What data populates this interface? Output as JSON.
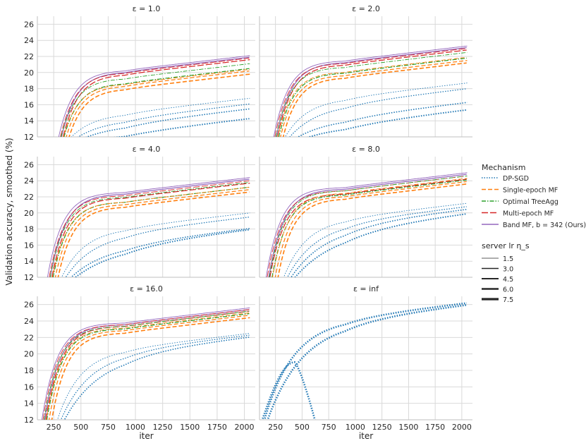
{
  "chart_data": {
    "type": "line",
    "ylabel": "Validation accuracy, smoothed (%)",
    "xlabel": "iter",
    "xlim": [
      100,
      2100
    ],
    "ylim": [
      12,
      27
    ],
    "xticks": [
      250,
      500,
      750,
      1000,
      1250,
      1500,
      1750,
      2000
    ],
    "yticks": [
      12,
      14,
      16,
      18,
      20,
      22,
      24,
      26
    ],
    "grid": true,
    "legend_position": "right",
    "legend": {
      "mechanism_title": "Mechanism",
      "mechanisms": [
        {
          "key": "dpsgd",
          "label": "DP-SGD",
          "color": "#1f77b4",
          "dash": "dotted"
        },
        {
          "key": "single",
          "label": "Single-epoch MF",
          "color": "#ff7f0e",
          "dash": "dashed"
        },
        {
          "key": "tree",
          "label": "Optimal TreeAgg",
          "color": "#2ca02c",
          "dash": "dashdot"
        },
        {
          "key": "multi",
          "label": "Multi-epoch MF",
          "color": "#d62728",
          "dash": "longdash"
        },
        {
          "key": "band",
          "label": "Band MF, b = 342 (Ours)",
          "color": "#9467bd",
          "dash": "solid"
        }
      ],
      "lr_title": "server lr η_s",
      "lrs": [
        "1.5",
        "3.0",
        "4.5",
        "6.0",
        "7.5"
      ]
    },
    "panels": [
      {
        "title": "ε = 1.0",
        "series": [
          {
            "mechanism": "band",
            "start": 280,
            "final": [
              22.1,
              21.9
            ]
          },
          {
            "mechanism": "multi",
            "start": 295,
            "final": [
              21.8,
              21.6
            ]
          },
          {
            "mechanism": "tree",
            "start": 300,
            "final": [
              21.1,
              20.5
            ]
          },
          {
            "mechanism": "single",
            "start": 320,
            "final": [
              20.4,
              20.2,
              19.8
            ]
          },
          {
            "mechanism": "dpsgd",
            "start": 350,
            "final": [
              16.8,
              16.1,
              15.5,
              14.3
            ]
          }
        ]
      },
      {
        "title": "ε = 2.0",
        "series": [
          {
            "mechanism": "band",
            "start": 220,
            "final": [
              23.3,
              23.1
            ]
          },
          {
            "mechanism": "multi",
            "start": 230,
            "final": [
              23.0,
              22.8
            ]
          },
          {
            "mechanism": "tree",
            "start": 240,
            "final": [
              22.5,
              21.8
            ]
          },
          {
            "mechanism": "single",
            "start": 255,
            "final": [
              21.9,
              21.5,
              21.2
            ]
          },
          {
            "mechanism": "dpsgd",
            "start": 300,
            "final": [
              18.7,
              18.0,
              16.3,
              15.4
            ]
          }
        ]
      },
      {
        "title": "ε = 4.0",
        "series": [
          {
            "mechanism": "band",
            "start": 180,
            "final": [
              24.4,
              24.2
            ]
          },
          {
            "mechanism": "multi",
            "start": 195,
            "final": [
              24.0,
              23.7
            ]
          },
          {
            "mechanism": "tree",
            "start": 205,
            "final": [
              23.8,
              23.2
            ]
          },
          {
            "mechanism": "single",
            "start": 225,
            "final": [
              23.2,
              22.9,
              22.6
            ]
          },
          {
            "mechanism": "dpsgd",
            "start": 290,
            "final": [
              20.0,
              19.5,
              18.1,
              18.0
            ]
          }
        ]
      },
      {
        "title": "ε = 8.0",
        "series": [
          {
            "mechanism": "band",
            "start": 150,
            "final": [
              25.0,
              24.8
            ]
          },
          {
            "mechanism": "multi",
            "start": 160,
            "final": [
              24.6,
              24.2
            ]
          },
          {
            "mechanism": "tree",
            "start": 180,
            "final": [
              24.6,
              24.1
            ]
          },
          {
            "mechanism": "single",
            "start": 210,
            "final": [
              24.3,
              23.9,
              23.6
            ]
          },
          {
            "mechanism": "dpsgd",
            "start": 300,
            "final": [
              21.2,
              20.8,
              20.5,
              20.0
            ]
          }
        ]
      },
      {
        "title": "ε = 16.0",
        "series": [
          {
            "mechanism": "band",
            "start": 130,
            "final": [
              25.6,
              25.4
            ]
          },
          {
            "mechanism": "multi",
            "start": 140,
            "final": [
              25.4,
              25.2
            ]
          },
          {
            "mechanism": "tree",
            "start": 150,
            "final": [
              25.2,
              24.9
            ]
          },
          {
            "mechanism": "single",
            "start": 170,
            "final": [
              25.0,
              24.7,
              24.4
            ]
          },
          {
            "mechanism": "dpsgd",
            "start": 260,
            "final": [
              22.5,
              22.3,
              22.1
            ]
          }
        ]
      },
      {
        "title": "ε = inf",
        "series": [
          {
            "mechanism": "dpsgd",
            "start": 100,
            "final": [
              26.3,
              26.2,
              26.0
            ],
            "diverging_peak": {
              "iter": 430,
              "value": 19.0,
              "end_iter": 640
            }
          }
        ]
      }
    ]
  }
}
